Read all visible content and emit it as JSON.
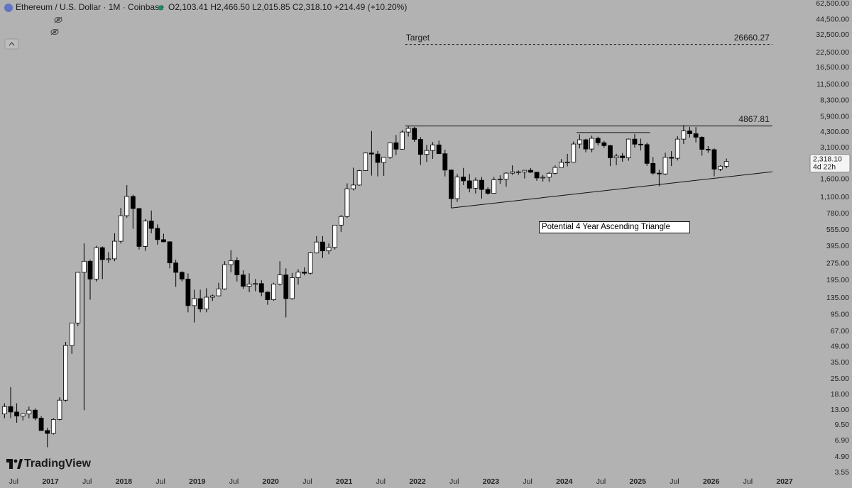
{
  "header": {
    "symbol": "Ethereum / U.S. Dollar · 1M · Coinbase",
    "ohlc": [
      "O2,103.41",
      "H2,466.50",
      "L2,015.85",
      "C2,318.10",
      "+214.49 (+10.20%)"
    ],
    "branding": "TradingView"
  },
  "chart_data": {
    "type": "candlestick",
    "log_scale": true,
    "up_color": "#ffffff",
    "down_color": "#000000",
    "border_color": "#000000",
    "x": [
      "2016-05",
      "2016-06",
      "2016-07",
      "2016-08",
      "2016-09",
      "2016-10",
      "2016-11",
      "2016-12",
      "2017-01",
      "2017-02",
      "2017-03",
      "2017-04",
      "2017-05",
      "2017-06",
      "2017-07",
      "2017-08",
      "2017-09",
      "2017-10",
      "2017-11",
      "2017-12",
      "2018-01",
      "2018-02",
      "2018-03",
      "2018-04",
      "2018-05",
      "2018-06",
      "2018-07",
      "2018-08",
      "2018-09",
      "2018-10",
      "2018-11",
      "2018-12",
      "2019-01",
      "2019-02",
      "2019-03",
      "2019-04",
      "2019-05",
      "2019-06",
      "2019-07",
      "2019-08",
      "2019-09",
      "2019-10",
      "2019-11",
      "2019-12",
      "2020-01",
      "2020-02",
      "2020-03",
      "2020-04",
      "2020-05",
      "2020-06",
      "2020-07",
      "2020-08",
      "2020-09",
      "2020-10",
      "2020-11",
      "2020-12",
      "2021-01",
      "2021-02",
      "2021-03",
      "2021-04",
      "2021-05",
      "2021-06",
      "2021-07",
      "2021-08",
      "2021-09",
      "2021-10",
      "2021-11",
      "2021-12",
      "2022-01",
      "2022-02",
      "2022-03",
      "2022-04",
      "2022-05",
      "2022-06",
      "2022-07",
      "2022-08",
      "2022-09",
      "2022-10",
      "2022-11",
      "2022-12",
      "2023-01",
      "2023-02",
      "2023-03",
      "2023-04",
      "2023-05",
      "2023-06",
      "2023-07",
      "2023-08",
      "2023-09",
      "2023-10",
      "2023-11",
      "2023-12",
      "2024-01",
      "2024-02",
      "2024-03",
      "2024-04",
      "2024-05",
      "2024-06",
      "2024-07",
      "2024-08",
      "2024-09",
      "2024-10",
      "2024-11",
      "2024-12",
      "2025-01",
      "2025-02",
      "2025-03",
      "2025-04",
      "2025-05",
      "2025-06",
      "2025-07",
      "2025-08",
      "2025-09",
      "2025-10",
      "2025-11",
      "2025-12",
      "2026-01",
      "2026-02",
      "2026-03"
    ],
    "open": [
      12,
      14,
      12.5,
      11.5,
      12,
      13,
      11,
      8.5,
      8,
      10.7,
      16,
      50,
      80,
      230,
      290,
      200,
      385,
      300,
      305,
      440,
      750,
      1120,
      870,
      395,
      670,
      575,
      455,
      435,
      280,
      230,
      200,
      115,
      133,
      107,
      137,
      141,
      163,
      270,
      294,
      218,
      172,
      180,
      182,
      152,
      130,
      180,
      218,
      133,
      206,
      231,
      226,
      345,
      433,
      360,
      387,
      616,
      737,
      1315,
      1420,
      1920,
      2770,
      2710,
      2275,
      2530,
      3430,
      3000,
      4290,
      4630,
      3680,
      2690,
      2920,
      3280,
      2730,
      1940,
      1070,
      1680,
      1550,
      1330,
      1570,
      1295,
      1195,
      1585,
      1605,
      1820,
      1870,
      1870,
      1930,
      1855,
      1645,
      1670,
      1815,
      2050,
      2280,
      2290,
      3340,
      3650,
      3010,
      3760,
      3430,
      3230,
      2510,
      2600,
      2510,
      3700,
      3330,
      3300,
      2230,
      1820,
      1790,
      2530,
      2485,
      3700,
      4390,
      4140,
      3850,
      2990,
      2970,
      1980,
      2103.41
    ],
    "high": [
      15,
      21,
      15,
      12,
      14,
      13.5,
      11.5,
      9,
      11,
      17,
      54,
      80,
      230,
      420,
      300,
      400,
      395,
      350,
      520,
      880,
      1420,
      1160,
      880,
      700,
      835,
      625,
      515,
      440,
      300,
      235,
      225,
      160,
      160,
      165,
      145,
      185,
      290,
      365,
      315,
      240,
      225,
      200,
      195,
      155,
      185,
      290,
      250,
      227,
      245,
      255,
      350,
      490,
      490,
      420,
      620,
      760,
      1470,
      2040,
      1950,
      2800,
      4380,
      2890,
      2550,
      3470,
      4030,
      4460,
      4868,
      4780,
      3860,
      3280,
      3480,
      3580,
      2960,
      1970,
      1780,
      2030,
      1790,
      1660,
      1680,
      1355,
      1680,
      1740,
      1850,
      2140,
      1930,
      1930,
      2030,
      1870,
      1750,
      1865,
      2140,
      2440,
      2720,
      3520,
      4090,
      3730,
      3980,
      3890,
      3560,
      3280,
      2730,
      2770,
      3750,
      4110,
      3740,
      3440,
      2550,
      1950,
      2790,
      2880,
      3940,
      4950,
      4770,
      4750,
      3920,
      3200,
      3050,
      2150,
      2466.5
    ],
    "low": [
      11,
      11,
      10,
      10.5,
      11,
      10.5,
      8.5,
      6,
      7.8,
      10.5,
      15.5,
      42,
      75,
      13,
      130,
      190,
      200,
      280,
      290,
      420,
      720,
      570,
      370,
      360,
      520,
      410,
      430,
      250,
      170,
      190,
      100,
      81,
      100,
      100,
      127,
      140,
      160,
      230,
      190,
      163,
      152,
      155,
      140,
      117,
      127,
      175,
      90,
      130,
      178,
      216,
      220,
      340,
      310,
      336,
      370,
      535,
      715,
      1270,
      1400,
      1900,
      1730,
      1700,
      1720,
      2450,
      2650,
      2970,
      3900,
      3500,
      2160,
      2300,
      2450,
      2780,
      1700,
      880,
      1000,
      1420,
      1220,
      1190,
      1070,
      1160,
      1190,
      1460,
      1370,
      1760,
      1760,
      1630,
      1830,
      1550,
      1530,
      1520,
      1775,
      2040,
      2100,
      2270,
      3050,
      2810,
      2810,
      3240,
      3080,
      2110,
      2150,
      2310,
      2360,
      3100,
      2920,
      2120,
      1760,
      1385,
      1750,
      2110,
      2370,
      3350,
      3820,
      3450,
      2620,
      2780,
      1700,
      1900,
      2015.85
    ],
    "close": [
      14,
      12.5,
      11.5,
      12,
      13,
      11,
      8.5,
      8,
      10.7,
      16,
      50,
      80,
      230,
      290,
      200,
      385,
      300,
      305,
      440,
      750,
      1120,
      870,
      395,
      670,
      575,
      455,
      435,
      280,
      230,
      200,
      115,
      133,
      107,
      137,
      141,
      163,
      270,
      294,
      218,
      172,
      180,
      182,
      152,
      130,
      180,
      218,
      133,
      206,
      231,
      226,
      345,
      433,
      360,
      387,
      616,
      737,
      1315,
      1420,
      1920,
      2770,
      2710,
      2275,
      2530,
      3430,
      3000,
      4290,
      4630,
      3680,
      2690,
      2920,
      3280,
      2730,
      1940,
      1070,
      1680,
      1550,
      1330,
      1570,
      1295,
      1195,
      1585,
      1605,
      1820,
      1870,
      1870,
      1930,
      1855,
      1645,
      1670,
      1815,
      2050,
      2280,
      2290,
      3340,
      3650,
      3010,
      3760,
      3430,
      3230,
      2510,
      2600,
      2510,
      3700,
      3330,
      3300,
      2230,
      1820,
      1790,
      2530,
      2485,
      3700,
      4390,
      4140,
      3850,
      2990,
      2970,
      1980,
      2103.41,
      2318.1
    ],
    "last_price_label": "2,318.10",
    "countdown": "4d 22h",
    "ylim": [
      3.55,
      62500
    ],
    "yticks": [
      {
        "value": 62500,
        "label": "62,500.00"
      },
      {
        "value": 44500,
        "label": "44,500.00"
      },
      {
        "value": 32500,
        "label": "32,500.00"
      },
      {
        "value": 22500,
        "label": "22,500.00"
      },
      {
        "value": 16500,
        "label": "16,500.00"
      },
      {
        "value": 11500,
        "label": "11,500.00"
      },
      {
        "value": 8300,
        "label": "8,300.00"
      },
      {
        "value": 5900,
        "label": "5,900.00"
      },
      {
        "value": 4300,
        "label": "4,300.00"
      },
      {
        "value": 3100,
        "label": "3,100.00"
      },
      {
        "value": 1600,
        "label": "1,600.00"
      },
      {
        "value": 1100,
        "label": "1,100.00"
      },
      {
        "value": 780,
        "label": "780.00"
      },
      {
        "value": 555,
        "label": "555.00"
      },
      {
        "value": 395,
        "label": "395.00"
      },
      {
        "value": 275,
        "label": "275.00"
      },
      {
        "value": 195,
        "label": "195.00"
      },
      {
        "value": 135,
        "label": "135.00"
      },
      {
        "value": 95,
        "label": "95.00"
      },
      {
        "value": 67,
        "label": "67.00"
      },
      {
        "value": 49,
        "label": "49.00"
      },
      {
        "value": 35,
        "label": "35.00"
      },
      {
        "value": 25,
        "label": "25.00"
      },
      {
        "value": 18,
        "label": "18.00"
      },
      {
        "value": 13,
        "label": "13.00"
      },
      {
        "value": 9.5,
        "label": "9.50"
      },
      {
        "value": 6.9,
        "label": "6.90"
      },
      {
        "value": 4.9,
        "label": "4.90"
      },
      {
        "value": 3.55,
        "label": "3.55"
      }
    ],
    "xticks": [
      {
        "value": "2016-07",
        "label": "Jul"
      },
      {
        "value": "2017-01",
        "label": "2017"
      },
      {
        "value": "2017-07",
        "label": "Jul"
      },
      {
        "value": "2018-01",
        "label": "2018"
      },
      {
        "value": "2018-07",
        "label": "Jul"
      },
      {
        "value": "2019-01",
        "label": "2019"
      },
      {
        "value": "2019-07",
        "label": "Jul"
      },
      {
        "value": "2020-01",
        "label": "2020"
      },
      {
        "value": "2020-07",
        "label": "Jul"
      },
      {
        "value": "2021-01",
        "label": "2021"
      },
      {
        "value": "2021-07",
        "label": "Jul"
      },
      {
        "value": "2022-01",
        "label": "2022"
      },
      {
        "value": "2022-07",
        "label": "Jul"
      },
      {
        "value": "2023-01",
        "label": "2023"
      },
      {
        "value": "2023-07",
        "label": "Jul"
      },
      {
        "value": "2024-01",
        "label": "2024"
      },
      {
        "value": "2024-07",
        "label": "Jul"
      },
      {
        "value": "2025-01",
        "label": "2025"
      },
      {
        "value": "2025-07",
        "label": "Jul"
      },
      {
        "value": "2026-01",
        "label": "2026"
      },
      {
        "value": "2026-07",
        "label": "Jul"
      },
      {
        "value": "2027-01",
        "label": "2027"
      }
    ],
    "annotations": [
      {
        "kind": "hline",
        "label": "Target",
        "value": 26660.27,
        "start": "2021-11",
        "end": "2026-11",
        "dashed": true
      },
      {
        "kind": "hline",
        "value": 4867.81,
        "start": "2021-11",
        "end": "2026-11",
        "dashed": false
      },
      {
        "kind": "hline",
        "value": 4240,
        "start": "2024-03",
        "end": "2025-03",
        "dashed": false
      },
      {
        "kind": "trendline",
        "start": "2022-06",
        "end": "2026-11",
        "values": [
          880,
          1875
        ]
      },
      {
        "kind": "note",
        "text": "Potential 4 Year Ascending Triangle"
      }
    ]
  }
}
